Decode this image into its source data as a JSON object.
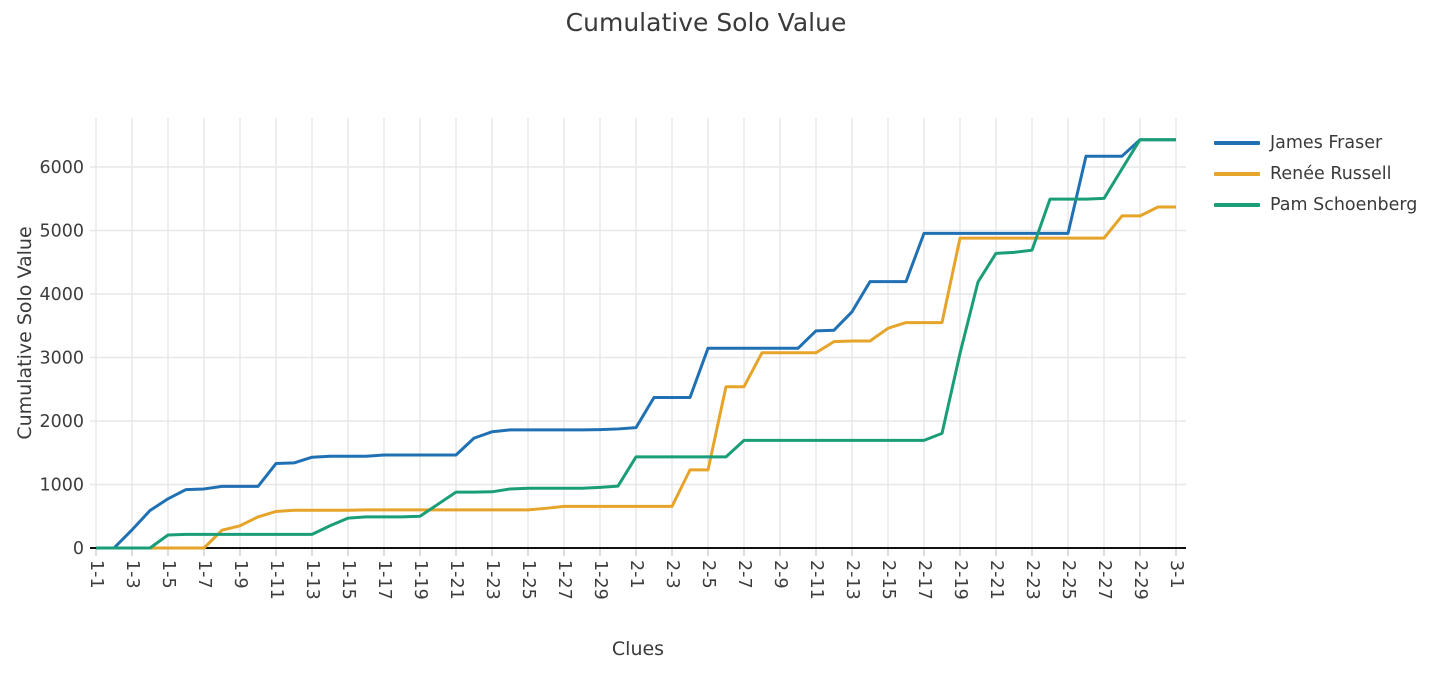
{
  "title": "Cumulative Solo Value",
  "chart_data": {
    "type": "line",
    "title": "Cumulative Solo Value",
    "xlabel": "Clues",
    "ylabel": "Cumulative Solo Value",
    "grid": true,
    "legend_position": "right",
    "ylim": [
      0,
      6740
    ],
    "yticks": [
      0,
      1000,
      2000,
      3000,
      4000,
      5000,
      6000
    ],
    "x_categories": [
      "1-1",
      "1-2",
      "1-3",
      "1-4",
      "1-5",
      "1-6",
      "1-7",
      "1-8",
      "1-9",
      "1-10",
      "1-11",
      "1-12",
      "1-13",
      "1-14",
      "1-15",
      "1-16",
      "1-17",
      "1-18",
      "1-19",
      "1-20",
      "1-21",
      "1-22",
      "1-23",
      "1-24",
      "1-25",
      "1-26",
      "1-27",
      "1-28",
      "1-29",
      "1-30",
      "2-1",
      "2-2",
      "2-3",
      "2-4",
      "2-5",
      "2-6",
      "2-7",
      "2-8",
      "2-9",
      "2-10",
      "2-11",
      "2-12",
      "2-13",
      "2-14",
      "2-15",
      "2-16",
      "2-17",
      "2-18",
      "2-19",
      "2-20",
      "2-21",
      "2-22",
      "2-23",
      "2-24",
      "2-25",
      "2-26",
      "2-27",
      "2-28",
      "2-29",
      "",
      "3-1"
    ],
    "x_tick_positions": [
      0,
      2,
      4,
      6,
      8,
      10,
      12,
      14,
      16,
      18,
      20,
      22,
      24,
      26,
      28,
      30,
      32,
      34,
      36,
      38,
      40,
      42,
      44,
      46,
      48,
      50,
      52,
      54,
      56,
      58,
      60
    ],
    "x_tick_labels": [
      "1-1",
      "1-3",
      "1-5",
      "1-7",
      "1-9",
      "1-11",
      "1-13",
      "1-15",
      "1-17",
      "1-19",
      "1-21",
      "1-23",
      "1-25",
      "1-27",
      "1-29",
      "2-1",
      "2-3",
      "2-5",
      "2-7",
      "2-9",
      "2-11",
      "2-13",
      "2-15",
      "2-17",
      "2-19",
      "2-21",
      "2-23",
      "2-25",
      "2-27",
      "2-29",
      "3-1"
    ],
    "series": [
      {
        "name": "James Fraser",
        "color": "#2071b4",
        "values": [
          0,
          0,
          285,
          590,
          775,
          920,
          930,
          970,
          970,
          970,
          1330,
          1340,
          1430,
          1445,
          1445,
          1445,
          1465,
          1465,
          1465,
          1465,
          1465,
          1730,
          1830,
          1860,
          1860,
          1860,
          1860,
          1860,
          1865,
          1875,
          1895,
          2370,
          2370,
          2370,
          3145,
          3145,
          3145,
          3145,
          3145,
          3145,
          3420,
          3430,
          3720,
          4195,
          4195,
          4195,
          4955,
          4955,
          4955,
          4955,
          4955,
          4955,
          4955,
          4955,
          4955,
          6170,
          6170,
          6170,
          6430,
          6430,
          6430
        ]
      },
      {
        "name": "Renée Russell",
        "color": "#e6a42a",
        "values": [
          0,
          0,
          0,
          0,
          0,
          0,
          0,
          280,
          350,
          490,
          575,
          595,
          595,
          595,
          595,
          600,
          600,
          600,
          600,
          600,
          600,
          600,
          600,
          600,
          600,
          625,
          655,
          655,
          655,
          655,
          655,
          655,
          655,
          1230,
          1230,
          2540,
          2540,
          3075,
          3075,
          3075,
          3075,
          3250,
          3260,
          3260,
          3460,
          3550,
          3550,
          3550,
          4880,
          4880,
          4880,
          4880,
          4880,
          4880,
          4880,
          4880,
          4880,
          5230,
          5230,
          5370,
          5370
        ]
      },
      {
        "name": "Pam Schoenberg",
        "color": "#1a9e77",
        "values": [
          0,
          0,
          0,
          0,
          205,
          215,
          215,
          215,
          215,
          215,
          215,
          215,
          215,
          350,
          470,
          490,
          490,
          490,
          500,
          690,
          880,
          880,
          885,
          930,
          940,
          940,
          940,
          940,
          955,
          975,
          1435,
          1435,
          1435,
          1435,
          1435,
          1435,
          1695,
          1695,
          1695,
          1695,
          1695,
          1695,
          1695,
          1695,
          1695,
          1695,
          1695,
          1805,
          3065,
          4190,
          4640,
          4655,
          4690,
          5495,
          5495,
          5495,
          5505,
          5970,
          6430,
          6430,
          6430
        ]
      }
    ],
    "colors": {
      "grid": "#e7e7e7",
      "axis_line": "#111111",
      "tick_label": "#3d3d3d",
      "title_text": "#3a3a3a"
    }
  }
}
